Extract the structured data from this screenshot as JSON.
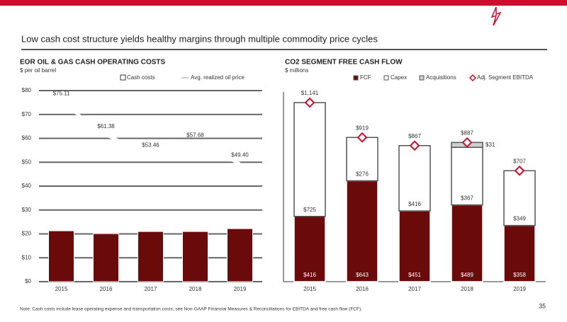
{
  "title": "Low cash cost structure yields healthy margins through multiple commodity price cycles",
  "footer": "Note: Cash costs include lease operating expense and transportation costs; see Non-GAAP Financial Measures & Reconciliations for EBITDA and free cash flow (FCF).",
  "page_number": "35",
  "chart_data": [
    {
      "type": "bar-line",
      "title": "EOR OIL & GAS CASH OPERATING COSTS",
      "subtitle": "$ per oil barrel",
      "categories": [
        "2015",
        "2016",
        "2017",
        "2018",
        "2019"
      ],
      "series": [
        {
          "name": "Cash costs",
          "color": "#6b0a0a",
          "kind": "bar",
          "values": [
            21.3,
            20.1,
            21.0,
            21.0,
            22.2
          ]
        },
        {
          "name": "Avg. realized oil price",
          "color": "#ffffff",
          "kind": "line",
          "values": [
            75.11,
            61.38,
            53.46,
            57.68,
            49.4
          ],
          "value_labels": [
            "$75.11",
            "$61.38",
            "$53.46",
            "$57.68",
            "$49.40"
          ]
        }
      ],
      "ylim": [
        0,
        80
      ],
      "yticks": [
        {
          "value": 0,
          "label": "$0"
        },
        {
          "value": 10,
          "label": "$10"
        },
        {
          "value": 20,
          "label": "$20"
        },
        {
          "value": 30,
          "label": "$30"
        },
        {
          "value": 40,
          "label": "$40"
        },
        {
          "value": 50,
          "label": "$50"
        },
        {
          "value": 60,
          "label": "$60"
        },
        {
          "value": 70,
          "label": "$70"
        },
        {
          "value": 80,
          "label": "$80"
        }
      ],
      "grid": true
    },
    {
      "type": "stacked-bar",
      "title": "CO2 SEGMENT FREE CASH FLOW",
      "subtitle": "$ millions",
      "categories": [
        "2015",
        "2016",
        "2017",
        "2018",
        "2019"
      ],
      "series": [
        {
          "name": "FCF",
          "color": "#6b0a0a",
          "values": [
            416,
            643,
            451,
            489,
            358
          ],
          "value_labels": [
            "$416",
            "$643",
            "$451",
            "$489",
            "$358"
          ]
        },
        {
          "name": "Capex",
          "color": "#ffffff",
          "values": [
            725,
            276,
            416,
            367,
            349
          ],
          "value_labels": [
            "$725",
            "$276",
            "$416",
            "$367",
            "$349"
          ]
        },
        {
          "name": "Acquisitions",
          "color": "#d0d0d0",
          "values": [
            null,
            null,
            null,
            31,
            null
          ],
          "value_labels": [
            null,
            null,
            null,
            "$31",
            null
          ]
        },
        {
          "name": "Adj. Segment EBITDA",
          "color": "#c8102e",
          "kind": "marker",
          "values": [
            1141,
            919,
            867,
            887,
            707
          ],
          "value_labels": [
            "$1,141",
            "$919",
            "$867",
            "$887",
            "$707"
          ]
        }
      ]
    }
  ]
}
